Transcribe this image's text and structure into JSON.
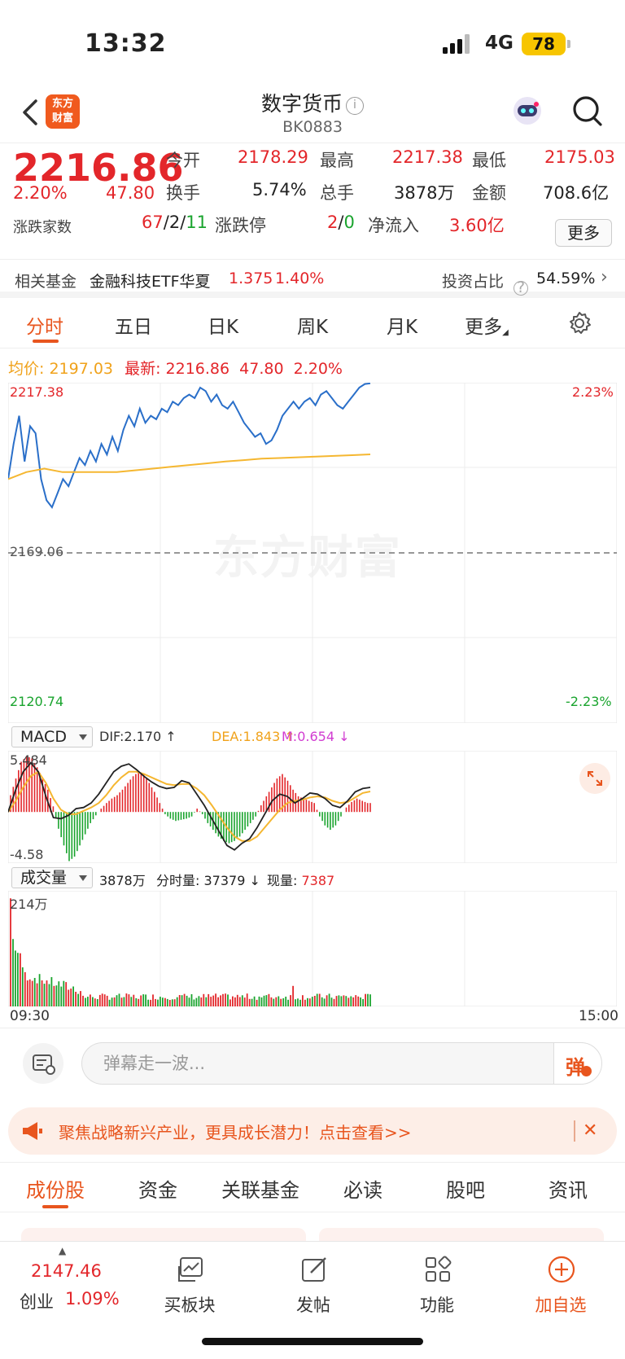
{
  "status_bar": {
    "time": "13:32",
    "network": "4G",
    "battery": "78"
  },
  "nav": {
    "logo_text_1": "东方",
    "logo_text_2": "财富",
    "title": "数字货币",
    "code": "BK0883"
  },
  "quote": {
    "price": "2216.86",
    "change_pct": "2.20%",
    "change": "47.80",
    "open_label": "今开",
    "open": "2178.29",
    "high_label": "最高",
    "high": "2217.38",
    "low_label": "最低",
    "low": "2175.03",
    "turnover_label": "换手",
    "turnover": "5.74%",
    "volume_label": "总手",
    "volume": "3878万",
    "amount_label": "金额",
    "amount": "708.6亿",
    "updown_label": "涨跌家数",
    "up_count": "67",
    "sep1": "/",
    "flat_count": "2",
    "sep2": "/",
    "down_count": "11",
    "limit_label": "涨跌停",
    "limit_up": "2",
    "sep3": "/",
    "limit_down": "0",
    "netflow_label": "净流入",
    "netflow": "3.60亿",
    "more_label": "更多"
  },
  "fund": {
    "label": "相关基金",
    "name": "金融科技ETF华夏",
    "price": "1.375",
    "pct": "1.40%",
    "invest_label": "投资占比",
    "invest_value": "54.59%"
  },
  "tabs": [
    {
      "label": "分时"
    },
    {
      "label": "五日"
    },
    {
      "label": "日K"
    },
    {
      "label": "周K"
    },
    {
      "label": "月K"
    },
    {
      "label": "更多"
    }
  ],
  "avg_row": {
    "avg_label": "均价:",
    "avg_value": "2197.03",
    "latest_label": "最新:",
    "latest_value": "2216.86",
    "latest_change": "47.80",
    "latest_pct": "2.20%"
  },
  "chart_data": {
    "type": "line",
    "y_top": "2217.38",
    "y_mid": "2169.06",
    "y_bottom": "2120.74",
    "pct_top": "2.23%",
    "pct_bottom": "-2.23%",
    "ylim": [
      2120.74,
      2217.38
    ],
    "prev_close": 2169.06,
    "x_start": "09:30",
    "x_end": "15:00",
    "series": [
      {
        "values": [
          2190,
          2200,
          2208,
          2195,
          2205,
          2203,
          2190,
          2184,
          2182,
          2186,
          2190,
          2188,
          2192,
          2196,
          2194,
          2198,
          2195,
          2200,
          2197,
          2202,
          2198,
          2204,
          2208,
          2205,
          2210,
          2206,
          2208,
          2207,
          2210,
          2209,
          2212,
          2211,
          2213,
          2214,
          2213,
          2216,
          2215,
          2212,
          2214,
          2211,
          2210,
          2212,
          2209,
          2206,
          2204,
          2202,
          2203,
          2200,
          2201,
          2204,
          2208,
          2210,
          2212,
          2210,
          2212,
          2213,
          2211,
          2214,
          2215,
          2213,
          2211,
          2210,
          2212,
          2214,
          2216,
          2217,
          2217.2
        ]
      },
      {
        "values": [
          2190,
          2192,
          2193,
          2192,
          2192,
          2192,
          2192,
          2192.5,
          2193,
          2193.5,
          2194,
          2194.5,
          2195,
          2195.4,
          2195.8,
          2196,
          2196.2,
          2196.4,
          2196.6,
          2196.8,
          2197.03
        ]
      }
    ]
  },
  "macd": {
    "selector": "MACD",
    "dif": "DIF:2.170 ↑",
    "dea": "DEA:1.843 ↑",
    "m": "M:0.654 ↓",
    "y_top": "5.484",
    "y_bottom": "-4.58",
    "ylim": [
      -4.58,
      5.484
    ],
    "hist": [
      1.5,
      3,
      4.5,
      5,
      4.8,
      4,
      3,
      2,
      0.5,
      -1.5,
      -3,
      -4.4,
      -4,
      -3,
      -2,
      -1,
      -0.3,
      0.3,
      0.8,
      1.2,
      1.5,
      2,
      2.6,
      3.2,
      3.6,
      3.4,
      2.6,
      1.8,
      0.8,
      -0.2,
      -0.6,
      -0.8,
      -0.7,
      -0.6,
      -0.4,
      0.3,
      -0.2,
      -1,
      -1.6,
      -2.2,
      -2.6,
      -2.8,
      -2.6,
      -2.2,
      -1.6,
      -1,
      -0.4,
      0.6,
      1.4,
      2.2,
      3,
      3.4,
      2.8,
      2,
      1.4,
      1.2,
      1.0,
      0.8,
      -0.4,
      -1.2,
      -1.6,
      -1.2,
      -0.4,
      0.4,
      0.9,
      1.2,
      1.0,
      0.8
    ],
    "dif_line": [
      0,
      2,
      3.6,
      4.4,
      3.6,
      1.4,
      -0.5,
      -0.6,
      -0.3,
      0.3,
      0.4,
      0.8,
      1.6,
      2.6,
      3.6,
      4.1,
      4.3,
      3.8,
      3.2,
      2.7,
      2.3,
      2.1,
      2.2,
      2.8,
      2.6,
      1.6,
      0.6,
      -0.6,
      -1.8,
      -3.0,
      -3.4,
      -2.8,
      -2.4,
      -1.4,
      -0.2,
      1.0,
      1.6,
      1.4,
      0.8,
      1.2,
      1.7,
      1.6,
      1.2,
      0.6,
      0.4,
      1.0,
      1.8,
      2.1,
      2.2
    ],
    "dea_line": [
      0,
      1,
      2.2,
      3.2,
      3.6,
      2.6,
      1.2,
      0.2,
      -0.2,
      -0.2,
      0.1,
      0.4,
      0.8,
      1.5,
      2.4,
      3.1,
      3.6,
      3.6,
      3.4,
      3.1,
      2.8,
      2.5,
      2.4,
      2.5,
      2.5,
      2.1,
      1.5,
      0.6,
      -0.4,
      -1.4,
      -2.2,
      -2.6,
      -2.6,
      -2.2,
      -1.4,
      -0.6,
      0.2,
      0.8,
      1.0,
      1.1,
      1.3,
      1.4,
      1.3,
      1.0,
      0.8,
      0.9,
      1.3,
      1.7,
      1.84
    ]
  },
  "volume": {
    "selector": "成交量",
    "total": "3878万",
    "minute_label": "分时量:",
    "minute_value": "37379 ↓",
    "current_label": "现量:",
    "current_value": "7387",
    "y_top": "214万",
    "ylim": [
      0,
      214
    ]
  },
  "danmu": {
    "placeholder": "弹幕走一波...",
    "button": "弹"
  },
  "promo": {
    "text": "聚焦战略新兴产业，更具成长潜力！点击查看>>"
  },
  "subtabs": [
    {
      "label": "成份股"
    },
    {
      "label": "资金"
    },
    {
      "label": "关联基金"
    },
    {
      "label": "必读"
    },
    {
      "label": "股吧"
    },
    {
      "label": "资讯"
    }
  ],
  "bottom_bar": {
    "index_value": "2147.46",
    "index_name": "创业",
    "index_pct": "1.09%",
    "items": [
      {
        "label": "买板块"
      },
      {
        "label": "发帖"
      },
      {
        "label": "功能"
      },
      {
        "label": "加自选"
      }
    ]
  },
  "colors": {
    "up": "#e3262a",
    "down": "#1aa42e",
    "accent": "#e8551e",
    "price_line": "#2a6fc9",
    "avg_line": "#f5b731"
  }
}
